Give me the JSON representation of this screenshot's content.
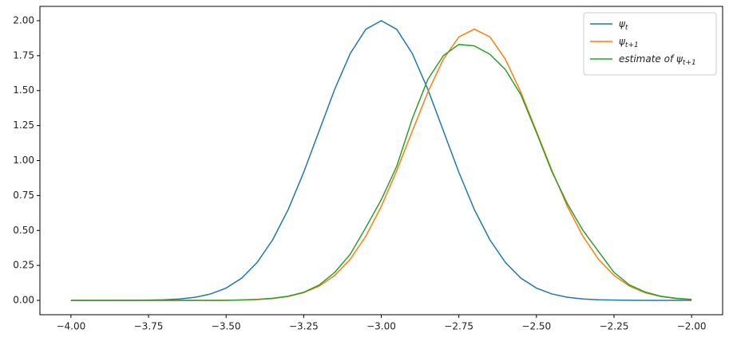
{
  "chart_data": {
    "type": "line",
    "x": [
      -4,
      -3.95,
      -3.9,
      -3.85,
      -3.8,
      -3.75,
      -3.7,
      -3.65,
      -3.6,
      -3.55,
      -3.5,
      -3.45,
      -3.4,
      -3.35,
      -3.3,
      -3.25,
      -3.2,
      -3.15,
      -3.1,
      -3.05,
      -3,
      -2.95,
      -2.9,
      -2.85,
      -2.8,
      -2.75,
      -2.7,
      -2.65,
      -2.6,
      -2.55,
      -2.5,
      -2.45,
      -2.4,
      -2.35,
      -2.3,
      -2.25,
      -2.2,
      -2.15,
      -2.1,
      -2.05,
      -2
    ],
    "series": [
      {
        "name": "ψt",
        "color": "#1f77b4",
        "values": [
          0,
          0,
          0,
          0,
          0.001,
          0.002,
          0.004,
          0.01,
          0.022,
          0.046,
          0.088,
          0.159,
          0.271,
          0.433,
          0.649,
          0.916,
          1.213,
          1.51,
          1.765,
          1.938,
          2,
          1.938,
          1.765,
          1.51,
          1.213,
          0.916,
          0.649,
          0.433,
          0.271,
          0.159,
          0.088,
          0.046,
          0.022,
          0.01,
          0.004,
          0.002,
          0.001,
          0,
          0,
          0,
          0
        ]
      },
      {
        "name": "ψt+1",
        "color": "#ff7f0e",
        "values": [
          0,
          0,
          0,
          0,
          0,
          0,
          0,
          0,
          0,
          0,
          0.001,
          0.003,
          0.006,
          0.013,
          0.028,
          0.055,
          0.102,
          0.178,
          0.294,
          0.458,
          0.671,
          0.929,
          1.21,
          1.488,
          1.724,
          1.884,
          1.94,
          1.884,
          1.724,
          1.488,
          1.21,
          0.929,
          0.671,
          0.458,
          0.294,
          0.178,
          0.102,
          0.055,
          0.028,
          0.013,
          0.006
        ]
      },
      {
        "name": "estimate of ψt+1",
        "color": "#2ca02c",
        "values": [
          0,
          0,
          0,
          0,
          0,
          0,
          0,
          0,
          0,
          0,
          0,
          0.003,
          0.007,
          0.015,
          0.03,
          0.058,
          0.11,
          0.2,
          0.33,
          0.52,
          0.72,
          0.96,
          1.3,
          1.58,
          1.75,
          1.83,
          1.82,
          1.76,
          1.65,
          1.47,
          1.2,
          0.92,
          0.69,
          0.5,
          0.35,
          0.2,
          0.11,
          0.06,
          0.03,
          0.015,
          0.007
        ]
      }
    ],
    "xlim": [
      -4.1,
      -1.9
    ],
    "ylim": [
      -0.1025,
      2.1025
    ],
    "xticks": [
      {
        "value": -4,
        "label": "−4.00"
      },
      {
        "value": -3.75,
        "label": "−3.75"
      },
      {
        "value": -3.5,
        "label": "−3.50"
      },
      {
        "value": -3.25,
        "label": "−3.25"
      },
      {
        "value": -3,
        "label": "−3.00"
      },
      {
        "value": -2.75,
        "label": "−2.75"
      },
      {
        "value": -2.5,
        "label": "−2.50"
      },
      {
        "value": -2.25,
        "label": "−2.25"
      },
      {
        "value": -2,
        "label": "−2.00"
      }
    ],
    "yticks": [
      {
        "value": 0,
        "label": "0.00"
      },
      {
        "value": 0.25,
        "label": "0.25"
      },
      {
        "value": 0.5,
        "label": "0.50"
      },
      {
        "value": 0.75,
        "label": "0.75"
      },
      {
        "value": 1,
        "label": "1.00"
      },
      {
        "value": 1.25,
        "label": "1.25"
      },
      {
        "value": 1.5,
        "label": "1.50"
      },
      {
        "value": 1.75,
        "label": "1.75"
      },
      {
        "value": 2,
        "label": "2.00"
      }
    ],
    "legend": "upper right"
  }
}
